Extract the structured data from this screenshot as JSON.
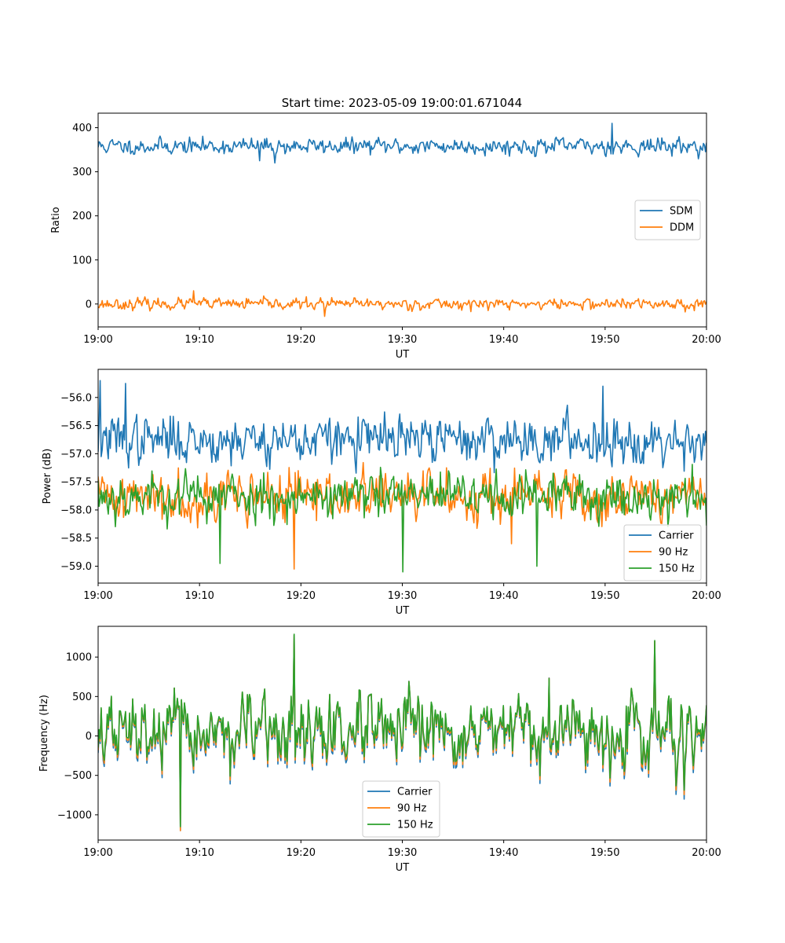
{
  "figure": {
    "title": "Start time: 2023-05-09 19:00:01.671044"
  },
  "colors": {
    "series_1": "#1f77b4",
    "series_2": "#ff7f0e",
    "series_3": "#2ca02c"
  },
  "chart_data": [
    {
      "type": "line",
      "xlabel": "UT",
      "ylabel": "Ratio",
      "xlim": [
        "19:00",
        "20:00"
      ],
      "ylim": [
        -52,
        433
      ],
      "xticks": [
        "19:00",
        "19:10",
        "19:20",
        "19:30",
        "19:40",
        "19:50",
        "20:00"
      ],
      "yticks": [
        0,
        100,
        200,
        300,
        400
      ],
      "legend_position": "center-right",
      "series": [
        {
          "name": "SDM",
          "color": "#1f77b4",
          "base": 358,
          "noise": 13,
          "seed": 11,
          "spikes": [
            [
              0.845,
              410
            ],
            [
              0.265,
              325
            ],
            [
              0.29,
              320
            ]
          ]
        },
        {
          "name": "DDM",
          "color": "#ff7f0e",
          "base": 0,
          "noise": 9,
          "seed": 23,
          "spikes": [
            [
              0.157,
              30
            ],
            [
              0.372,
              -28
            ]
          ]
        }
      ]
    },
    {
      "type": "line",
      "xlabel": "UT",
      "ylabel": "Power (dB)",
      "xlim": [
        "19:00",
        "20:00"
      ],
      "ylim": [
        -59.3,
        -55.5
      ],
      "xticks": [
        "19:00",
        "19:10",
        "19:20",
        "19:30",
        "19:40",
        "19:50",
        "20:00"
      ],
      "yticks": [
        -59.0,
        -58.5,
        -58.0,
        -57.5,
        -57.0,
        -56.5,
        -56.0
      ],
      "legend_position": "bottom-right",
      "series": [
        {
          "name": "Carrier",
          "color": "#1f77b4",
          "base": -56.75,
          "noise": 0.3,
          "seed": 37,
          "spikes": [
            [
              0.003,
              -55.7
            ],
            [
              0.045,
              -55.75
            ],
            [
              0.83,
              -55.8
            ]
          ]
        },
        {
          "name": "90 Hz",
          "color": "#ff7f0e",
          "base": -57.75,
          "noise": 0.32,
          "seed": 41,
          "spikes": [
            [
              0.323,
              -59.05
            ],
            [
              0.68,
              -58.6
            ]
          ]
        },
        {
          "name": "150 Hz",
          "color": "#2ca02c",
          "base": -57.75,
          "noise": 0.3,
          "seed": 53,
          "spikes": [
            [
              0.5,
              -59.1
            ],
            [
              0.2,
              -58.95
            ],
            [
              0.722,
              -59.0
            ]
          ]
        }
      ]
    },
    {
      "type": "line",
      "xlabel": "UT",
      "ylabel": "Frequency (Hz)",
      "xlim": [
        "19:00",
        "20:00"
      ],
      "ylim": [
        -1320,
        1390
      ],
      "xticks": [
        "19:00",
        "19:10",
        "19:20",
        "19:30",
        "19:40",
        "19:50",
        "20:00"
      ],
      "yticks": [
        -1000,
        -500,
        0,
        500,
        1000
      ],
      "legend_position": "bottom-center",
      "series": [
        {
          "name": "Carrier",
          "color": "#1f77b4",
          "base": 0,
          "noise": 330,
          "seed": 67,
          "spikes": [
            [
              0.136,
              -1200
            ],
            [
              0.322,
              1280
            ],
            [
              0.915,
              1200
            ]
          ]
        },
        {
          "name": "90 Hz",
          "color": "#ff7f0e",
          "base": 0,
          "noise": 330,
          "seed": 67,
          "spikes": [
            [
              0.136,
              -1200
            ],
            [
              0.322,
              1280
            ],
            [
              0.915,
              1200
            ]
          ]
        },
        {
          "name": "150 Hz",
          "color": "#2ca02c",
          "base": 0,
          "noise": 330,
          "seed": 67,
          "spikes": [
            [
              0.136,
              -1150
            ],
            [
              0.322,
              1290
            ],
            [
              0.915,
              1210
            ]
          ]
        }
      ]
    }
  ]
}
